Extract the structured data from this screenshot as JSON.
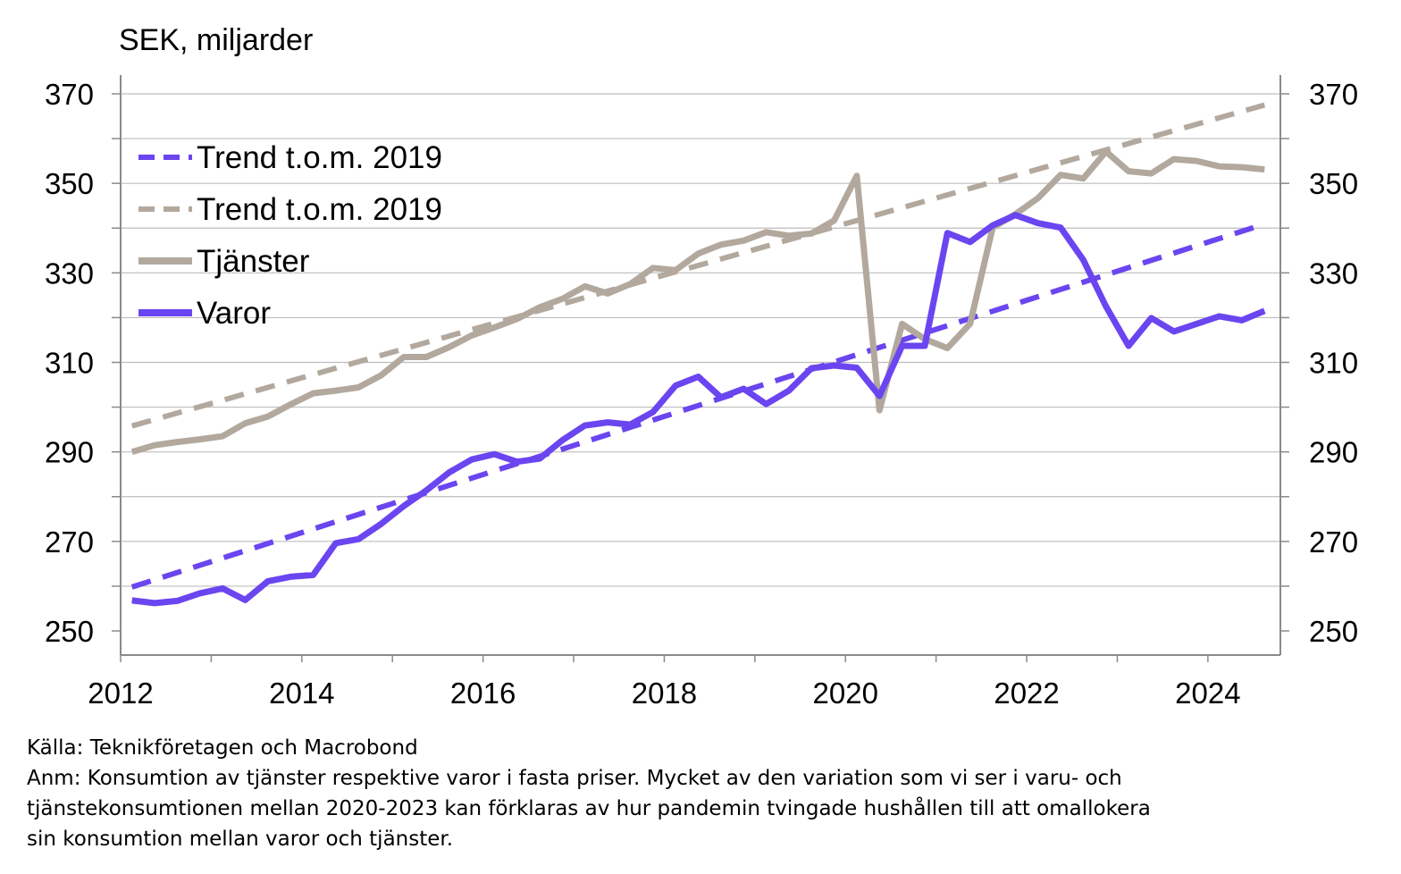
{
  "unit_label": "SEK, miljarder",
  "footnote": {
    "source": "Källa: Teknikföretagen och Macrobond",
    "note_lines": [
      "Anm: Konsumtion av tjänster respektive varor i fasta priser. Mycket av den variation som vi ser i varu- och",
      "tjänstekonsumtionen mellan 2020-2023 kan förklaras av hur pandemin tvingade hushållen till att omallokera",
      "sin konsumtion mellan varor och tjänster."
    ]
  },
  "colors": {
    "varor": "#6a45f0",
    "tjanster": "#b2a89d",
    "axis": "#8a8a8a",
    "grid": "#bdbdbd"
  },
  "chart_data": {
    "type": "line",
    "title": "",
    "xlabel": "",
    "ylabel": "SEK, miljarder",
    "xlim": [
      2012.0,
      2024.8
    ],
    "ylim": [
      244,
      370
    ],
    "yticks": [
      250,
      270,
      290,
      310,
      330,
      350,
      370
    ],
    "xticks": [
      2012,
      2014,
      2016,
      2018,
      2020,
      2022,
      2024
    ],
    "y2ticks": [
      250,
      270,
      290,
      310,
      330,
      350,
      370
    ],
    "grid": true,
    "legend_position": "top-left",
    "legend": [
      {
        "label": "Trend t.o.m. 2019",
        "series": "trend_varor",
        "style": "dashed",
        "color": "#6a45f0"
      },
      {
        "label": "Trend t.o.m. 2019",
        "series": "trend_tjanster",
        "style": "dashed",
        "color": "#b2a89d"
      },
      {
        "label": "Tjänster",
        "series": "tjanster",
        "style": "solid",
        "color": "#b2a89d"
      },
      {
        "label": "Varor",
        "series": "varor",
        "style": "solid",
        "color": "#6a45f0"
      }
    ],
    "x": [
      2012.125,
      2012.375,
      2012.625,
      2012.875,
      2013.125,
      2013.375,
      2013.625,
      2013.875,
      2014.125,
      2014.375,
      2014.625,
      2014.875,
      2015.125,
      2015.375,
      2015.625,
      2015.875,
      2016.125,
      2016.375,
      2016.625,
      2016.875,
      2017.125,
      2017.375,
      2017.625,
      2017.875,
      2018.125,
      2018.375,
      2018.625,
      2018.875,
      2019.125,
      2019.375,
      2019.625,
      2019.875,
      2020.125,
      2020.375,
      2020.625,
      2020.875,
      2021.125,
      2021.375,
      2021.625,
      2021.875,
      2022.125,
      2022.375,
      2022.625,
      2022.875,
      2023.125,
      2023.375,
      2023.625,
      2023.875,
      2024.125,
      2024.375,
      2024.625
    ],
    "series": [
      {
        "name": "Tjänster",
        "key": "tjanster",
        "values": [
          290,
          291.5,
          292.2,
          292.8,
          293.5,
          296.4,
          297.9,
          300.6,
          303.1,
          303.7,
          304.4,
          307.1,
          311.2,
          311.2,
          313.4,
          316,
          317.8,
          319.7,
          322.3,
          324.2,
          327,
          325.4,
          327.5,
          331.1,
          330.6,
          334.3,
          336.3,
          337.2,
          339.1,
          338.3,
          338.8,
          341.7,
          351.7,
          299.3,
          318.6,
          315.2,
          313.2,
          318.6,
          340.1,
          343.1,
          346.7,
          351.9,
          351.1,
          357.1,
          352.7,
          352.2,
          355.4,
          355,
          353.8,
          353.6,
          353.1
        ]
      },
      {
        "name": "Varor",
        "key": "varor",
        "values": [
          256.8,
          256.2,
          256.7,
          258.4,
          259.5,
          256.9,
          261.1,
          262.1,
          262.5,
          269.6,
          270.5,
          273.9,
          277.9,
          281.4,
          285.4,
          288.3,
          289.5,
          287.8,
          288.5,
          292.6,
          295.9,
          296.6,
          296.1,
          298.9,
          304.8,
          306.8,
          302.2,
          304.1,
          300.7,
          303.7,
          308.7,
          309.3,
          308.8,
          302.5,
          313.7,
          313.7,
          338.9,
          336.9,
          340.6,
          342.9,
          341.1,
          340.1,
          332.9,
          322.5,
          313.7,
          319.9,
          316.9,
          318.6,
          320.3,
          319.4,
          321.5
        ]
      },
      {
        "key": "trend_varor",
        "x": [
          2012.125,
          2024.625
        ],
        "values": [
          259.8,
          340.9
        ]
      },
      {
        "key": "trend_tjanster",
        "x": [
          2012.125,
          2024.625
        ],
        "values": [
          295.8,
          367.5
        ]
      }
    ]
  }
}
